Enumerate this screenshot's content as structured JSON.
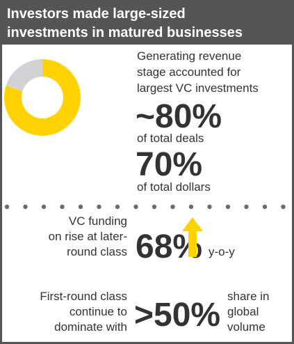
{
  "header": {
    "title": [
      "Investors made large-sized",
      "investments in matured businesses"
    ]
  },
  "donut": {
    "values": [
      80,
      20
    ],
    "colors": [
      "#ffd200",
      "#d2d2d4"
    ]
  },
  "stage": {
    "text": [
      "Generating revenue",
      "stage accounted for",
      "largest VC investments"
    ],
    "deals": {
      "value": "~80%",
      "label": "of total deals"
    },
    "dollars": {
      "value": "70%",
      "label": "of total dollars"
    }
  },
  "later_round": {
    "text": [
      "VC funding",
      "on rise at later-",
      "round class"
    ],
    "value": "68%",
    "suffix": "y-o-y"
  },
  "first_round": {
    "text": [
      "First-round class",
      "continue to",
      "dominate with"
    ],
    "value": ">50%",
    "suffix": [
      "share in",
      "global",
      "volume"
    ]
  }
}
